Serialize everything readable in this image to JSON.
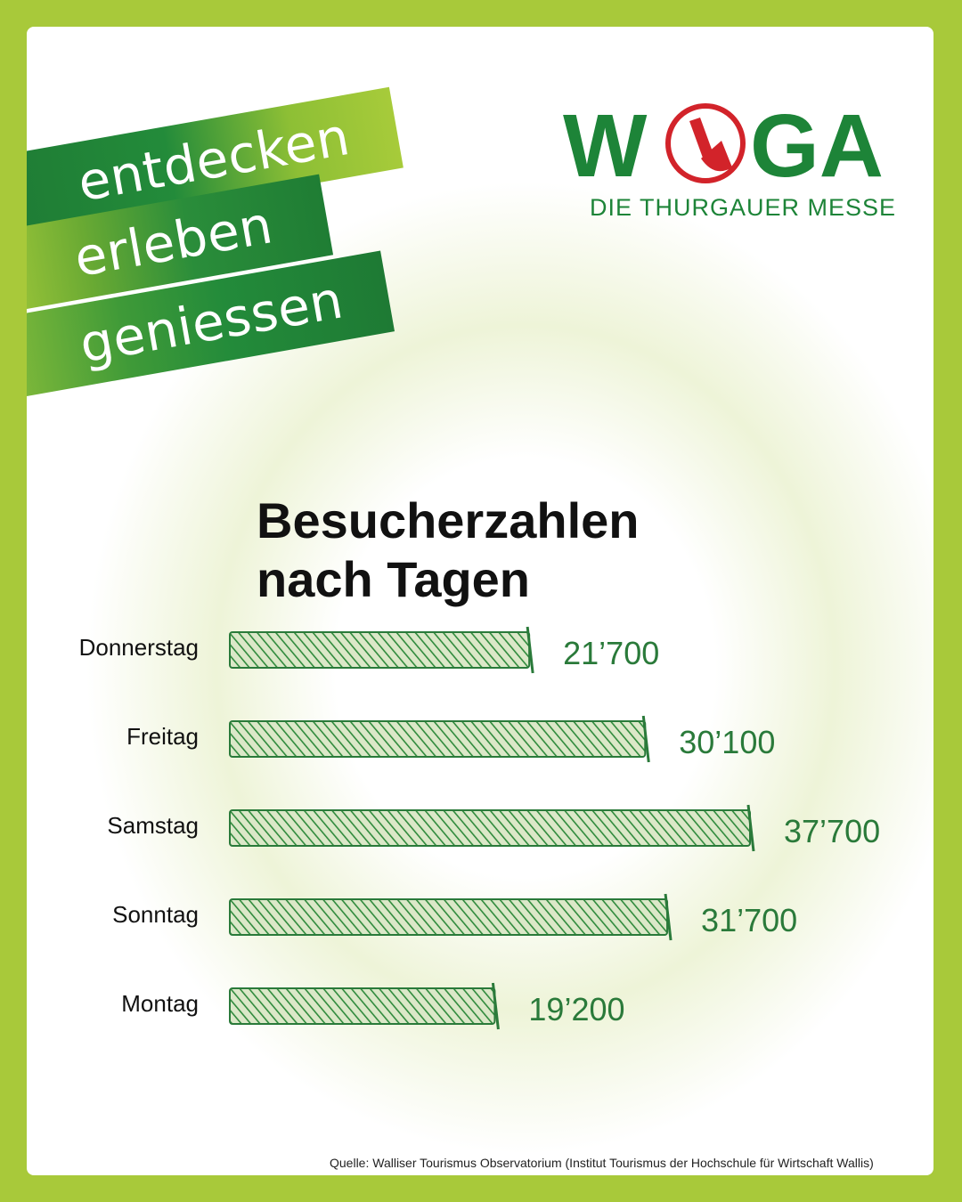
{
  "ribbons": [
    "entdecken",
    "erleben",
    "geniessen"
  ],
  "logo": {
    "name": "WEGA",
    "subtitle": "DIE THURGAUER MESSE"
  },
  "title_lines": [
    "Besucherzahlen",
    "nach Tagen"
  ],
  "colors": {
    "accent_green": "#1d8438",
    "frame": "#a8c93a",
    "value_text": "#2a7a3a"
  },
  "chart_data": {
    "type": "bar",
    "orientation": "horizontal",
    "title": "Besucherzahlen nach Tagen",
    "categories": [
      "Donnerstag",
      "Freitag",
      "Samstag",
      "Sonntag",
      "Montag"
    ],
    "values": [
      21700,
      30100,
      37700,
      31700,
      19200
    ],
    "value_labels": [
      "21’700",
      "30’100",
      "37’700",
      "31’700",
      "19’200"
    ],
    "grid": false,
    "legend": "none"
  },
  "source": "Quelle: Walliser Tourismus Observatorium (Institut Tourismus der Hochschule für Wirtschaft Wallis)"
}
